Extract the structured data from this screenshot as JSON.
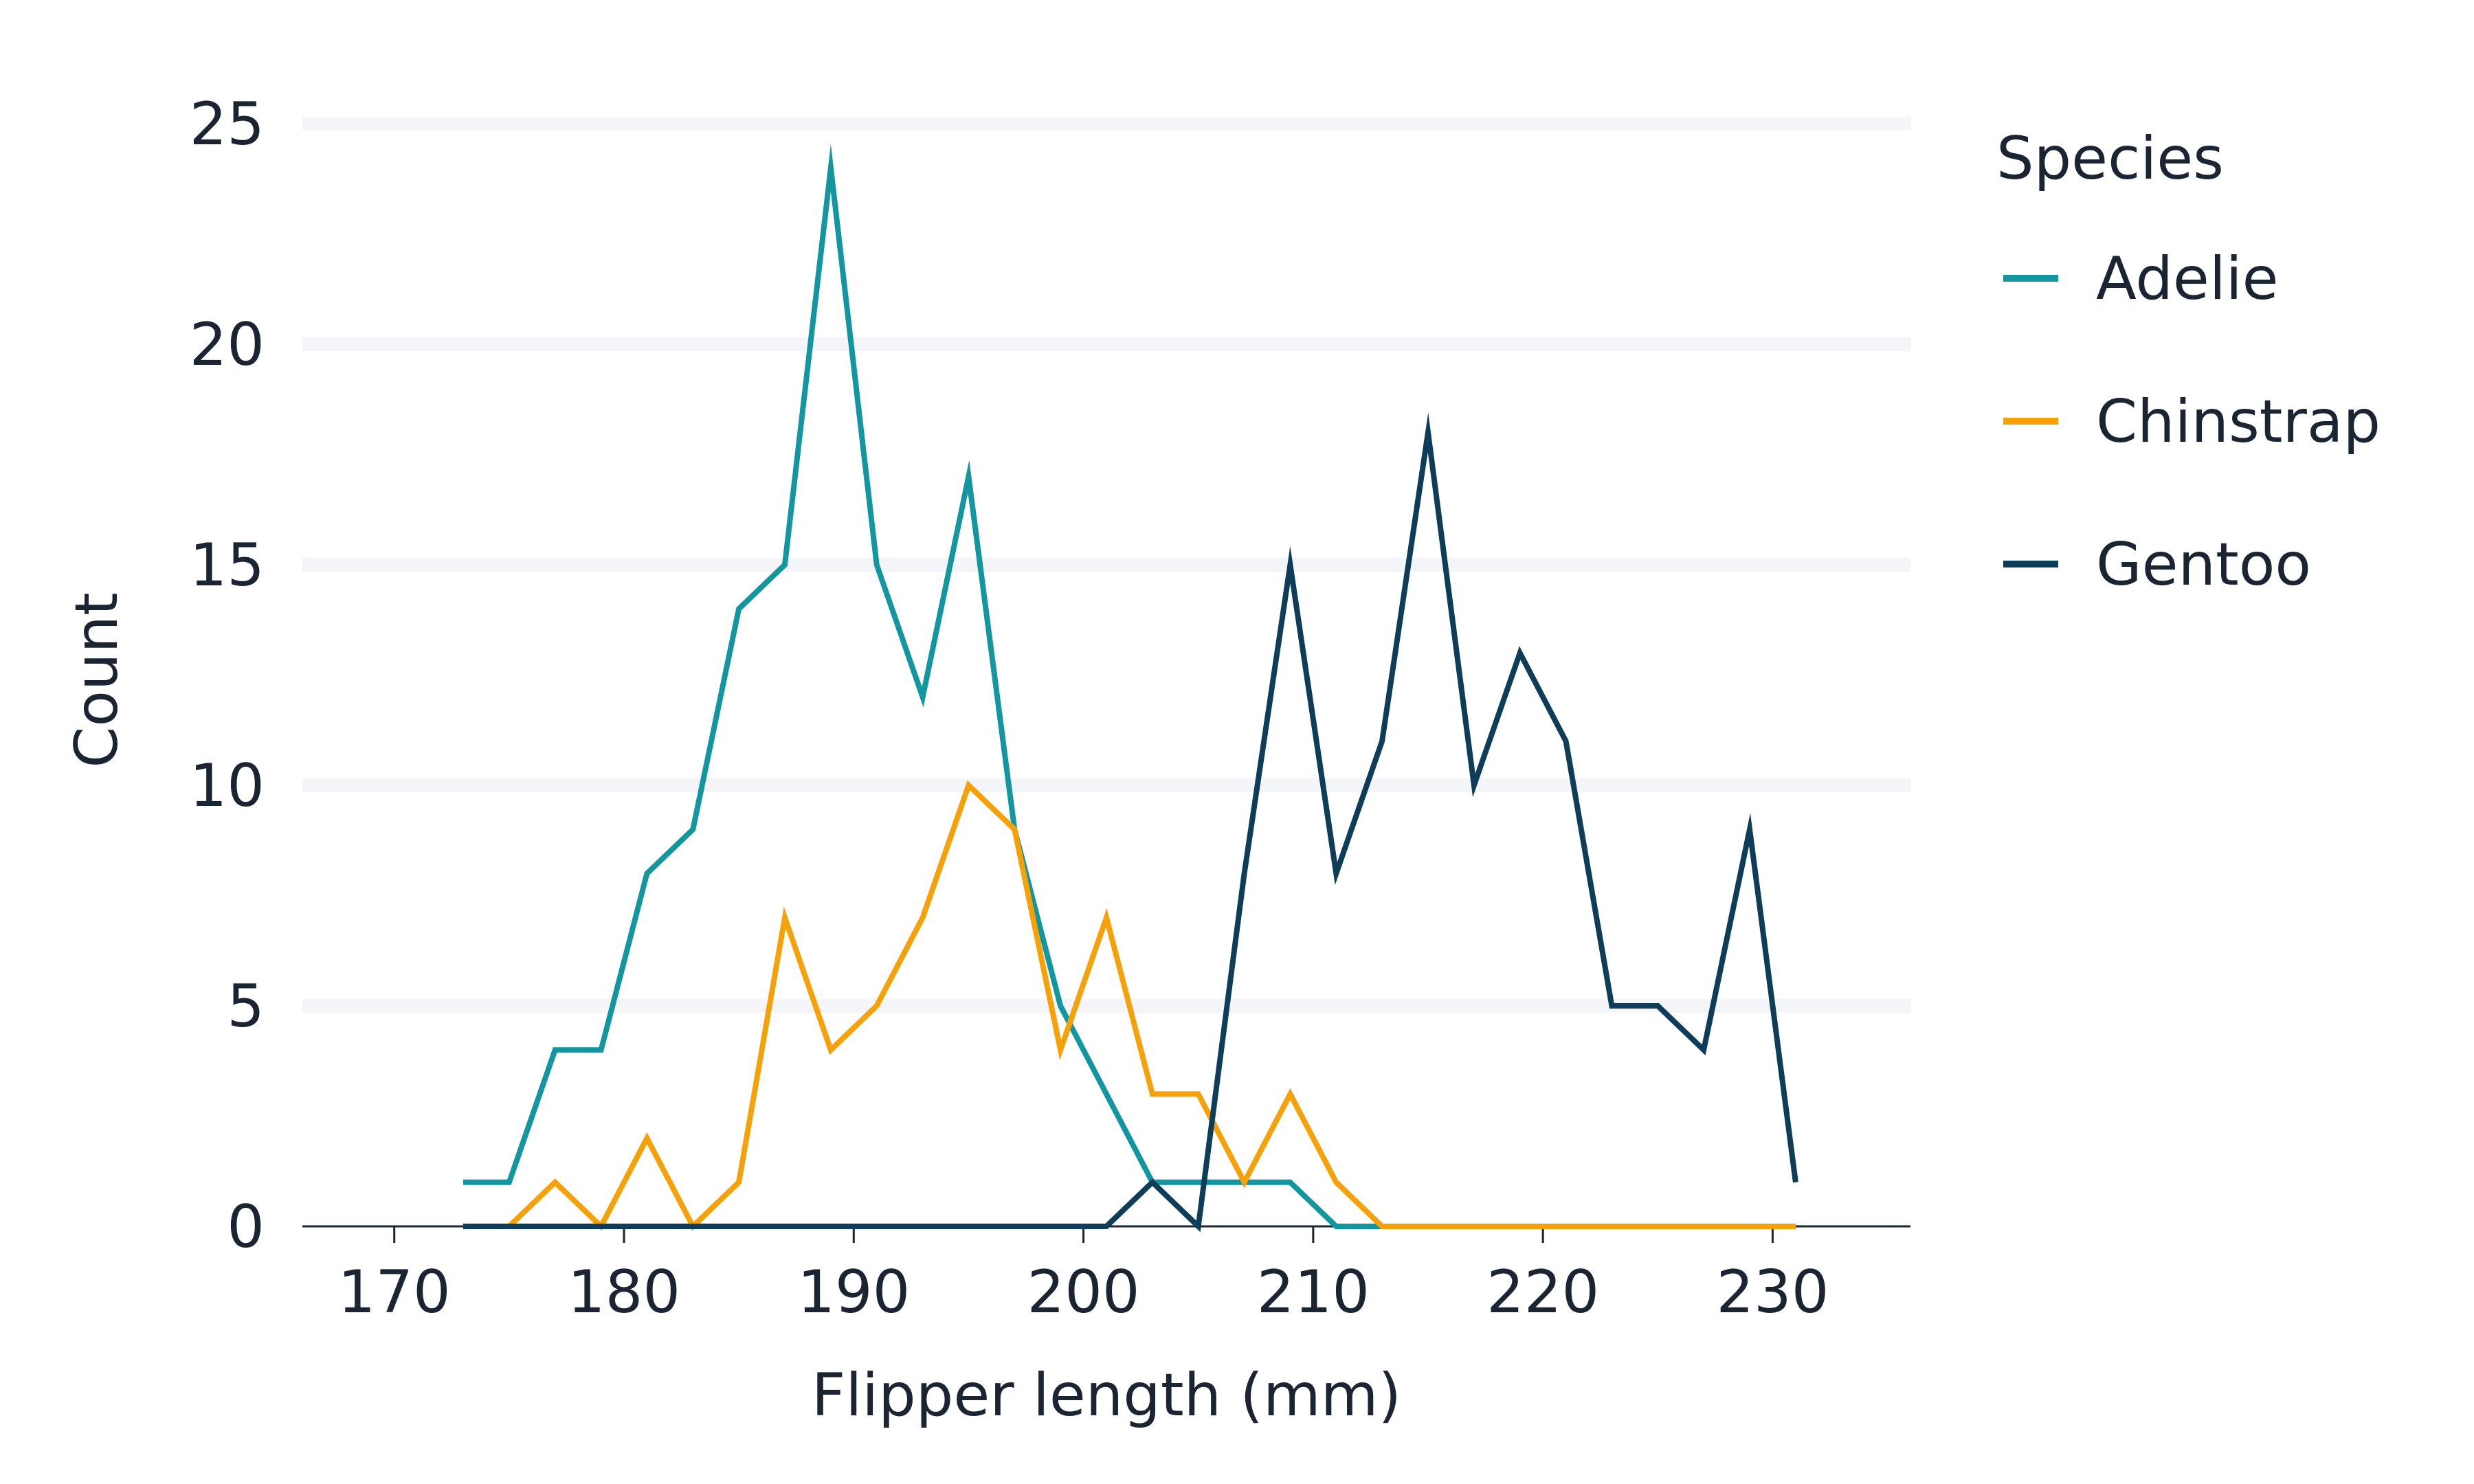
{
  "chart_data": {
    "type": "line",
    "xlabel": "Flipper length (mm)",
    "ylabel": "Count",
    "xlim": [
      166,
      236
    ],
    "ylim": [
      0,
      25
    ],
    "xticks": [
      170,
      180,
      190,
      200,
      210,
      220,
      230
    ],
    "yticks": [
      0,
      5,
      10,
      15,
      20,
      25
    ],
    "grid": "horizontal",
    "legend": {
      "title": "Species",
      "placement": "right"
    },
    "x": [
      173,
      175,
      177,
      179,
      181,
      183,
      185,
      187,
      189,
      191,
      193,
      195,
      197,
      199,
      201,
      203,
      205,
      207,
      209,
      211,
      213,
      215,
      217,
      219,
      221,
      223,
      225,
      227,
      229,
      231
    ],
    "series": [
      {
        "name": "Adelie",
        "color": "#1496a0",
        "values": [
          1,
          1,
          4,
          4,
          8,
          9,
          14,
          15,
          24,
          15,
          12,
          17,
          9,
          5,
          3,
          1,
          1,
          1,
          1,
          0,
          0,
          0,
          0,
          0,
          0,
          0,
          0,
          0,
          0,
          0
        ]
      },
      {
        "name": "Chinstrap",
        "color": "#f5a20a",
        "values": [
          0,
          0,
          1,
          0,
          2,
          0,
          1,
          7,
          4,
          5,
          7,
          10,
          9,
          4,
          7,
          3,
          3,
          1,
          3,
          1,
          0,
          0,
          0,
          0,
          0,
          0,
          0,
          0,
          0,
          0
        ]
      },
      {
        "name": "Gentoo",
        "color": "#0d3d58",
        "values": [
          0,
          0,
          0,
          0,
          0,
          0,
          0,
          0,
          0,
          0,
          0,
          0,
          0,
          0,
          0,
          1,
          0,
          8,
          15,
          8,
          11,
          18,
          10,
          13,
          11,
          5,
          5,
          4,
          9,
          1
        ]
      }
    ]
  }
}
